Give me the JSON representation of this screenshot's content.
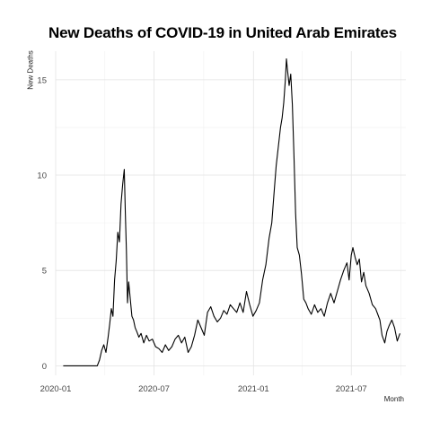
{
  "chart_data": {
    "type": "line",
    "title": "New Deaths of COVID-19 in United Arab Emirates",
    "xlabel": "Month",
    "ylabel": "New Deaths",
    "x_start": "2020-01-15",
    "x_ticks": [
      "2020-01",
      "2020-07",
      "2021-01",
      "2021-07"
    ],
    "y_ticks": [
      0,
      5,
      10,
      15
    ],
    "ylim": [
      -0.5,
      16.5
    ],
    "grid": true,
    "series": [
      {
        "x": [
          "2020-01-15",
          "2020-02-01",
          "2020-03-01",
          "2020-03-05",
          "2020-03-10",
          "2020-03-14",
          "2020-03-18",
          "2020-03-22",
          "2020-03-26",
          "2020-03-30",
          "2020-04-03",
          "2020-04-07",
          "2020-04-10",
          "2020-04-13",
          "2020-04-16",
          "2020-04-19",
          "2020-04-22",
          "2020-04-25",
          "2020-04-28",
          "2020-05-01",
          "2020-05-04",
          "2020-05-07",
          "2020-05-09",
          "2020-05-11",
          "2020-05-13",
          "2020-05-15",
          "2020-05-18",
          "2020-05-21",
          "2020-05-24",
          "2020-05-27",
          "2020-05-30",
          "2020-06-03",
          "2020-06-07",
          "2020-06-12",
          "2020-06-17",
          "2020-06-22",
          "2020-06-28",
          "2020-07-04",
          "2020-07-10",
          "2020-07-16",
          "2020-07-22",
          "2020-07-28",
          "2020-08-03",
          "2020-08-09",
          "2020-08-15",
          "2020-08-21",
          "2020-08-27",
          "2020-09-02",
          "2020-09-08",
          "2020-09-14",
          "2020-09-20",
          "2020-09-26",
          "2020-10-02",
          "2020-10-08",
          "2020-10-14",
          "2020-10-20",
          "2020-10-26",
          "2020-11-01",
          "2020-11-07",
          "2020-11-13",
          "2020-11-19",
          "2020-11-25",
          "2020-12-01",
          "2020-12-07",
          "2020-12-13",
          "2020-12-19",
          "2020-12-25",
          "2020-12-31",
          "2021-01-06",
          "2021-01-12",
          "2021-01-18",
          "2021-01-24",
          "2021-01-30",
          "2021-02-04",
          "2021-02-08",
          "2021-02-12",
          "2021-02-16",
          "2021-02-20",
          "2021-02-23",
          "2021-02-26",
          "2021-03-01",
          "2021-03-03",
          "2021-03-05",
          "2021-03-08",
          "2021-03-11",
          "2021-03-14",
          "2021-03-17",
          "2021-03-20",
          "2021-03-23",
          "2021-03-27",
          "2021-03-31",
          "2021-04-04",
          "2021-04-08",
          "2021-04-12",
          "2021-04-18",
          "2021-04-24",
          "2021-04-30",
          "2021-05-06",
          "2021-05-12",
          "2021-05-18",
          "2021-05-24",
          "2021-05-30",
          "2021-06-05",
          "2021-06-11",
          "2021-06-17",
          "2021-06-23",
          "2021-06-27",
          "2021-07-01",
          "2021-07-04",
          "2021-07-08",
          "2021-07-12",
          "2021-07-16",
          "2021-07-20",
          "2021-07-24",
          "2021-07-28",
          "2021-08-03",
          "2021-08-09",
          "2021-08-15",
          "2021-08-19",
          "2021-08-23",
          "2021-08-27",
          "2021-09-01",
          "2021-09-05",
          "2021-09-09",
          "2021-09-14",
          "2021-09-19",
          "2021-09-24",
          "2021-09-29"
        ],
        "y": [
          0,
          0,
          0,
          0,
          0,
          0,
          0,
          0.3,
          0.8,
          1.1,
          0.7,
          1.5,
          2.2,
          3.0,
          2.6,
          4.5,
          5.5,
          7.0,
          6.5,
          8.5,
          9.5,
          10.3,
          8.0,
          6.0,
          3.3,
          4.4,
          3.5,
          2.6,
          2.4,
          2.0,
          1.8,
          1.5,
          1.7,
          1.2,
          1.6,
          1.3,
          1.4,
          1.0,
          0.9,
          0.7,
          1.1,
          0.8,
          1.0,
          1.4,
          1.6,
          1.2,
          1.5,
          0.7,
          1.0,
          1.6,
          2.4,
          2.0,
          1.6,
          2.8,
          3.1,
          2.6,
          2.3,
          2.5,
          2.9,
          2.7,
          3.2,
          3.0,
          2.8,
          3.3,
          2.8,
          3.9,
          3.2,
          2.6,
          2.9,
          3.3,
          4.5,
          5.3,
          6.7,
          7.5,
          9.0,
          10.5,
          11.5,
          12.5,
          13.0,
          13.8,
          15.0,
          16.1,
          15.5,
          14.7,
          15.3,
          13.7,
          11.0,
          8.0,
          6.2,
          5.8,
          4.8,
          3.5,
          3.3,
          3.0,
          2.7,
          3.2,
          2.8,
          3.0,
          2.6,
          3.3,
          3.8,
          3.3,
          3.9,
          4.5,
          5.0,
          5.4,
          4.5,
          5.8,
          6.2,
          5.7,
          5.3,
          5.6,
          4.4,
          4.9,
          4.2,
          3.8,
          3.2,
          3.0,
          2.7,
          2.4,
          1.6,
          1.2,
          1.8,
          2.1,
          2.4,
          2.0,
          1.3,
          1.7
        ]
      }
    ]
  }
}
